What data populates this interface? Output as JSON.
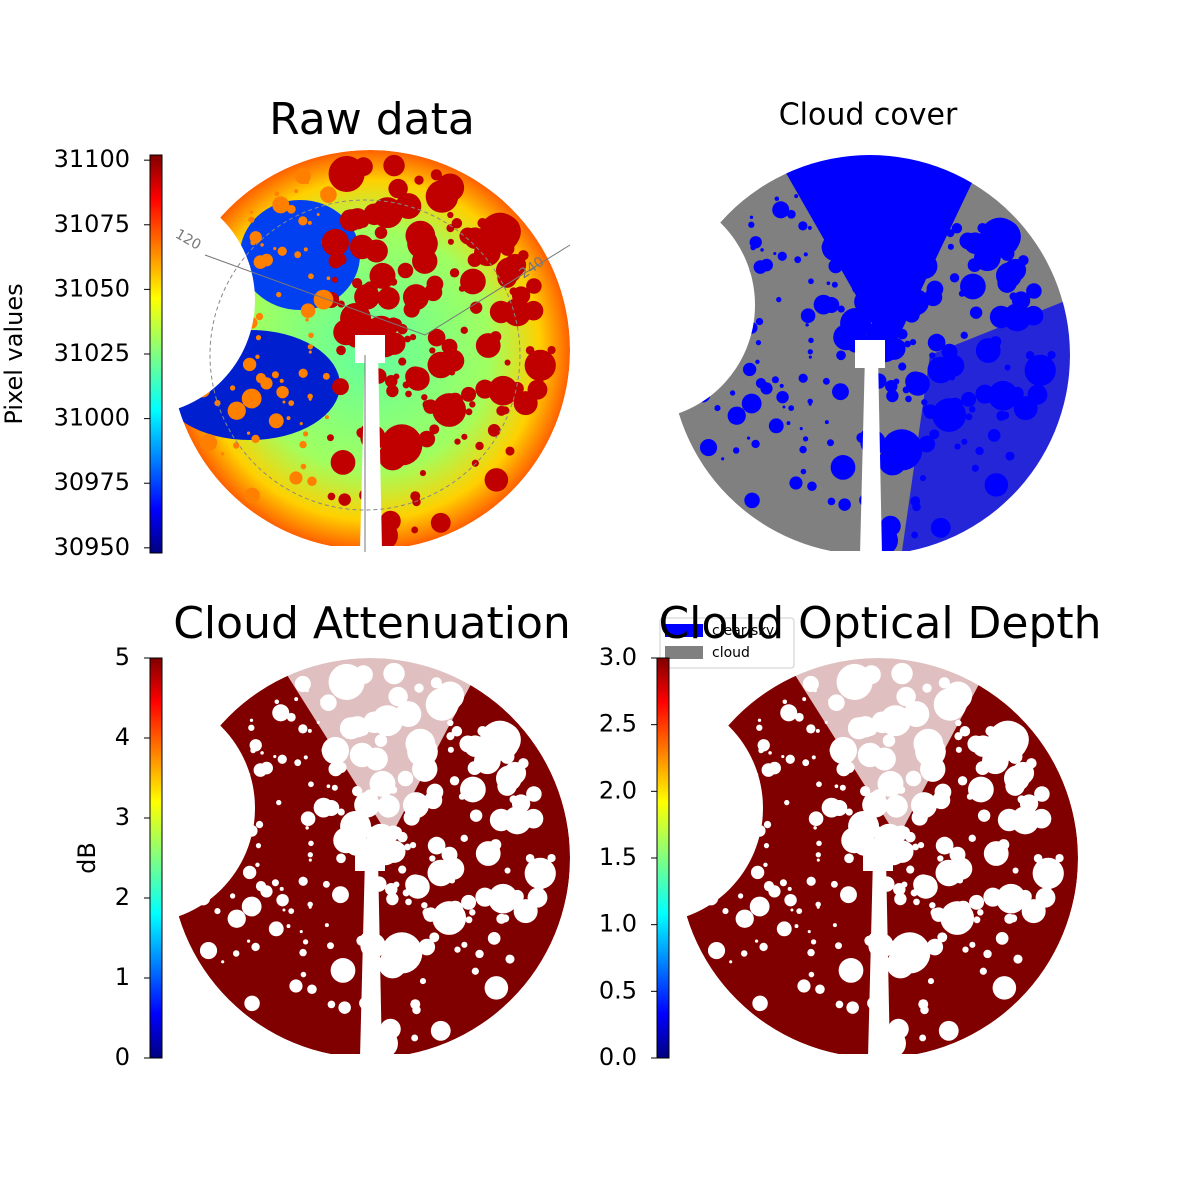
{
  "chart_data": [
    {
      "type": "image",
      "title": "Raw data",
      "colorbar_label": "Pixel values",
      "colormap": "jet",
      "clim": [
        30948,
        31102
      ],
      "cticks": [
        30950,
        30975,
        31000,
        31025,
        31050,
        31075,
        31100
      ],
      "annotations": [
        "120",
        "240"
      ]
    },
    {
      "type": "image",
      "title": "Cloud cover",
      "series": [
        {
          "name": "clear sky",
          "color": "#0000ff"
        },
        {
          "name": "cloud",
          "color": "#808080"
        }
      ]
    },
    {
      "type": "image",
      "title": "Cloud Attenuation",
      "colorbar_label": "dB",
      "colormap": "jet",
      "color": "#800000",
      "clim": [
        0,
        5
      ],
      "cticks": [
        0,
        1,
        2,
        3,
        4,
        5
      ]
    },
    {
      "type": "image",
      "title": "Cloud Optical Depth",
      "colormap": "jet",
      "color": "#800000",
      "clim": [
        0,
        3
      ],
      "cticks": [
        {
          "value": 0,
          "label": "0.0"
        },
        {
          "value": 0.5,
          "label": "0.5"
        },
        {
          "value": 1,
          "label": "1.0"
        },
        {
          "value": 1.5,
          "label": "1.5"
        },
        {
          "value": 2,
          "label": "2.0"
        },
        {
          "value": 2.5,
          "label": "2.5"
        },
        {
          "value": 3,
          "label": "3.0"
        }
      ]
    }
  ]
}
